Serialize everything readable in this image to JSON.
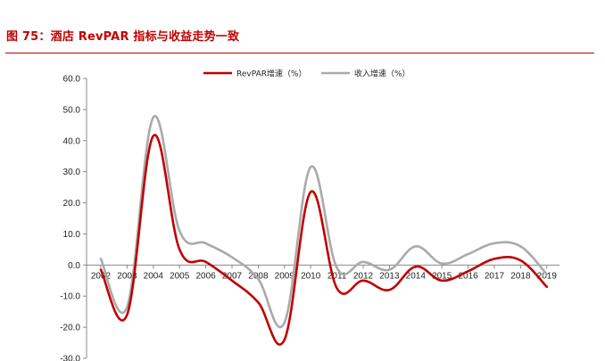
{
  "figure_title": "图 75：酒店 RevPAR 指标与收益走势一致",
  "colors": {
    "title": "#c00000",
    "revpar": "#c00000",
    "income": "#aaaaaa",
    "axis": "#888888"
  },
  "chart_data": {
    "type": "line",
    "title": "",
    "xlabel": "",
    "ylabel": "",
    "ylim": [
      -30,
      60
    ],
    "yticks": [
      "60.0",
      "50.0",
      "40.0",
      "30.0",
      "20.0",
      "10.0",
      "0.0",
      "-10.0",
      "-20.0",
      "-30.0"
    ],
    "categories": [
      "2002",
      "2003",
      "2004",
      "2005",
      "2006",
      "2007",
      "2008",
      "2009",
      "2010",
      "2011",
      "2012",
      "2013",
      "2014",
      "2015",
      "2016",
      "2017",
      "2018",
      "2019"
    ],
    "grid": false,
    "legend": "top-center",
    "series": [
      {
        "name": "RevPAR增速（%）",
        "color": "#c00000",
        "values": [
          -1.5,
          -16.0,
          41.5,
          5.0,
          1.0,
          -5.0,
          -12.0,
          -24.0,
          23.5,
          -7.5,
          -5.0,
          -8.0,
          -0.5,
          -5.0,
          -2.0,
          2.0,
          1.5,
          -7.0
        ]
      },
      {
        "name": "收入增速（%）",
        "color": "#aaaaaa",
        "values": [
          2.0,
          -13.5,
          47.5,
          11.0,
          7.0,
          2.5,
          -4.5,
          -18.5,
          31.5,
          -1.0,
          1.0,
          -1.5,
          6.0,
          0.5,
          3.5,
          7.0,
          6.0,
          -3.0
        ]
      }
    ]
  }
}
